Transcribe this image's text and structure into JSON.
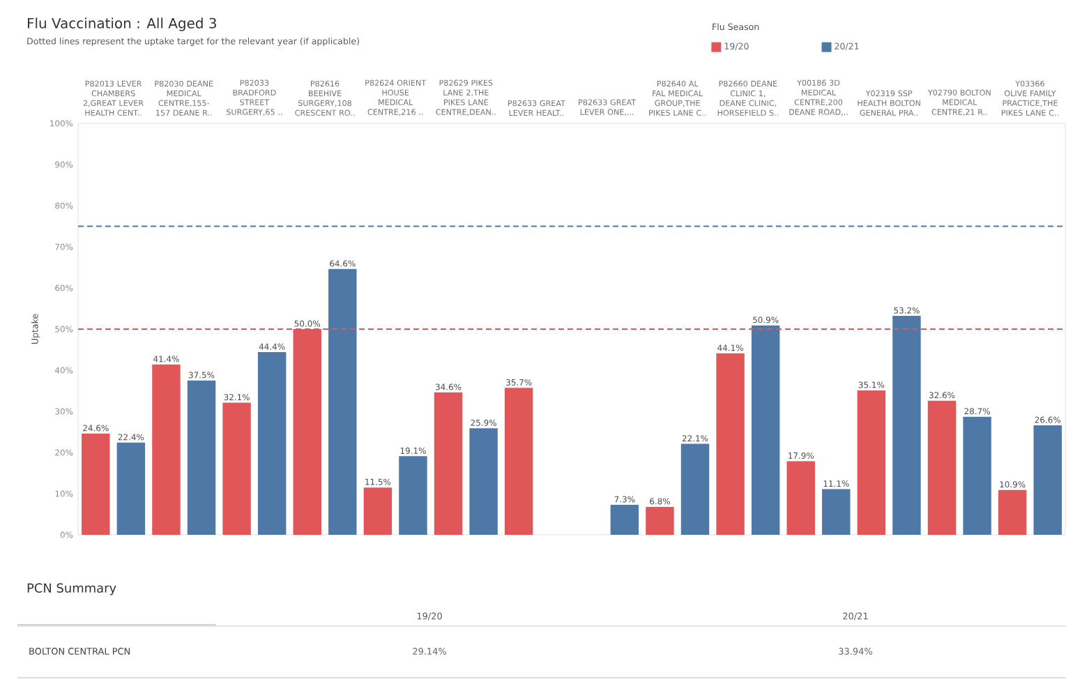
{
  "chart_data": {
    "type": "bar",
    "title": "Flu Vaccination : All Aged 3",
    "subtitle": "Dotted lines represent the uptake target for the relevant year (if applicable)",
    "ylabel": "Uptake",
    "legend_title": "Flu Season",
    "legend": "top right",
    "categories": [
      "P82013 LEVER CHAMBERS 2,GREAT LEVER HEALTH CENT..",
      "P82030 DEANE MEDICAL CENTRE,155-157 DEANE R..",
      "P82033 BRADFORD STREET SURGERY,65 ..",
      "P82616 BEEHIVE SURGERY,108 CRESCENT RO..",
      "P82624 ORIENT HOUSE MEDICAL CENTRE,216 ..",
      "P82629 PIKES LANE 2,THE PIKES LANE CENTRE,DEAN..",
      "P82633 GREAT LEVER HEALT..",
      "P82633 GREAT LEVER ONE,...",
      "P82640 AL FAL MEDICAL GROUP,THE PIKES LANE C..",
      "P82660 DEANE CLINIC 1, DEANE CLINIC, HORSEFIELD S..",
      "Y00186 3D MEDICAL CENTRE,200 DEANE ROAD,..",
      "Y02319 SSP HEALTH BOLTON GENERAL PRA..",
      "Y02790 BOLTON MEDICAL CENTRE,21 R..",
      "Y03366 OLIVE FAMILY PRACTICE,THE PIKES LANE C.."
    ],
    "series": [
      {
        "name": "19/20",
        "color": "#e15759",
        "values": [
          24.6,
          41.4,
          32.1,
          50.0,
          11.5,
          34.6,
          35.7,
          null,
          6.8,
          44.1,
          17.9,
          35.1,
          32.6,
          10.9
        ],
        "value_labels": [
          "24.6%",
          "41.4%",
          "32.1%",
          "50.0%",
          "11.5%",
          "34.6%",
          "35.7%",
          null,
          "6.8%",
          "44.1%",
          "17.9%",
          "35.1%",
          "32.6%",
          "10.9%"
        ]
      },
      {
        "name": "20/21",
        "color": "#4e79a7",
        "values": [
          22.4,
          37.5,
          44.4,
          64.6,
          19.1,
          25.9,
          null,
          7.3,
          22.1,
          50.9,
          11.1,
          53.2,
          28.7,
          26.6
        ],
        "value_labels": [
          "22.4%",
          "37.5%",
          "44.4%",
          "64.6%",
          "19.1%",
          "25.9%",
          null,
          "7.3%",
          "22.1%",
          "50.9%",
          "11.1%",
          "53.2%",
          "28.7%",
          "26.6%"
        ]
      }
    ],
    "ylim": [
      0,
      100
    ],
    "yticks": [
      {
        "value": 0,
        "label": "0%"
      },
      {
        "value": 10,
        "label": "10%"
      },
      {
        "value": 20,
        "label": "20%"
      },
      {
        "value": 30,
        "label": "30%"
      },
      {
        "value": 40,
        "label": "40%"
      },
      {
        "value": 50,
        "label": "50%"
      },
      {
        "value": 60,
        "label": "60%"
      },
      {
        "value": 70,
        "label": "70%"
      },
      {
        "value": 80,
        "label": "80%"
      },
      {
        "value": 90,
        "label": "90%"
      },
      {
        "value": 100,
        "label": "100%"
      }
    ],
    "ref_lines": [
      {
        "axis": "y",
        "value": 50,
        "color": "#e15759",
        "line_style": "dashed"
      },
      {
        "axis": "y",
        "value": 75,
        "color": "#4e79a7",
        "line_style": "dashed"
      }
    ],
    "annotations": [
      "PCN Summary",
      "19/20",
      "20/21",
      "BOLTON CENTRAL PCN",
      "29.14%",
      "33.94%"
    ]
  }
}
